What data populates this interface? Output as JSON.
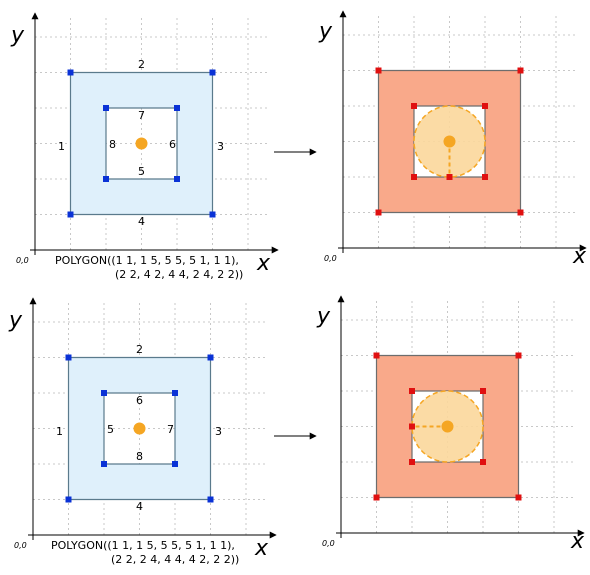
{
  "colors": {
    "input_fill": "#dff0fb",
    "input_stroke": "#5a7a8c",
    "input_vertex": "#0a32d6",
    "output_fill": "#f9a98a",
    "output_stroke": "#6d6d6d",
    "output_vertex": "#e01010",
    "center": "#f5a623",
    "circle_fill": "#fbd79b",
    "grid": "#c8c8c8"
  },
  "axis": {
    "x_label": "x",
    "y_label": "y",
    "origin_label": "0,0"
  },
  "arrow_icon": "right-arrow-icon",
  "panels": [
    {
      "edge_labels": [
        "1",
        "2",
        "3",
        "4",
        "5",
        "6",
        "7",
        "8"
      ],
      "caption_line1": "POLYGON((1 1, 1 5, 5 5, 5 1, 1 1),",
      "caption_line2": "(2 2, 4 2, 4 4, 2 4, 2 2))",
      "radius_direction": "down"
    },
    {
      "edge_labels": [
        "1",
        "2",
        "3",
        "4",
        "5",
        "6",
        "7",
        "8"
      ],
      "caption_line1": "POLYGON((1 1, 1 5, 5 5, 5 1, 1 1),",
      "caption_line2": "(2 2, 2 4, 4 4, 4 2, 2 2))",
      "radius_direction": "left"
    }
  ]
}
